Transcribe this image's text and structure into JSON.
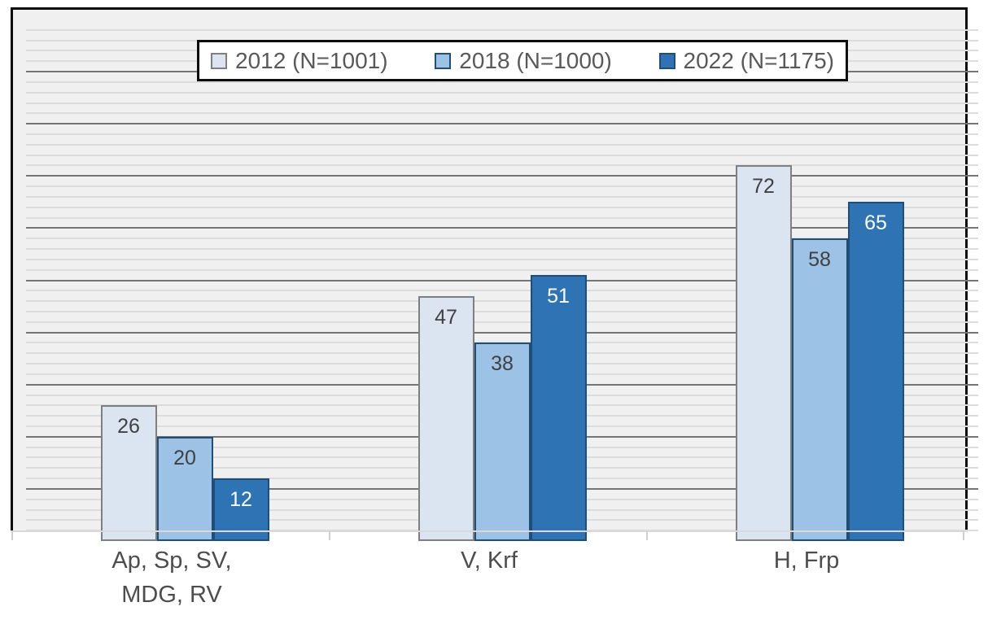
{
  "chart_data": {
    "type": "bar",
    "title": "",
    "xlabel": "",
    "ylabel": "",
    "categories": [
      "Ap, Sp, SV, MDG, RV",
      "V, Krf",
      "H, Frp"
    ],
    "category_label_lines": [
      [
        "Ap, Sp, SV,",
        "MDG, RV"
      ],
      [
        "V, Krf"
      ],
      [
        "H, Frp"
      ]
    ],
    "series": [
      {
        "name": "2012 (N=1001)",
        "values": [
          26,
          47,
          72
        ]
      },
      {
        "name": "2018 (N=1000)",
        "values": [
          20,
          38,
          58
        ]
      },
      {
        "name": "2022 (N=1175)",
        "values": [
          12,
          51,
          65
        ]
      }
    ],
    "data_labels": [
      [
        "26",
        "47",
        "72"
      ],
      [
        "20",
        "38",
        "58"
      ],
      [
        "12",
        "51",
        "65"
      ]
    ],
    "ylim": [
      0,
      100
    ],
    "y_major_unit": 10,
    "y_minor_unit": 2,
    "grid": "horizontal major+minor",
    "legend_position": "top-center",
    "data_label_position": "inside-end"
  },
  "colors": {
    "series_fill": [
      "#dbe5f1",
      "#9cc3e5",
      "#2e74b5"
    ],
    "series_border": [
      "#7f7f7f",
      "#1f4e79",
      "#1f4e79"
    ],
    "data_label_color": [
      "#404040",
      "#404040",
      "#ffffff"
    ],
    "plot_background": "#f0f0f0",
    "plot_border": "#0d0d0d",
    "major_gridline": "#757575",
    "minor_gridline": "#dcdcdc",
    "axis_line": "#d9d9d9",
    "legend_text": "#595959",
    "category_text": "#4d4d4d"
  }
}
